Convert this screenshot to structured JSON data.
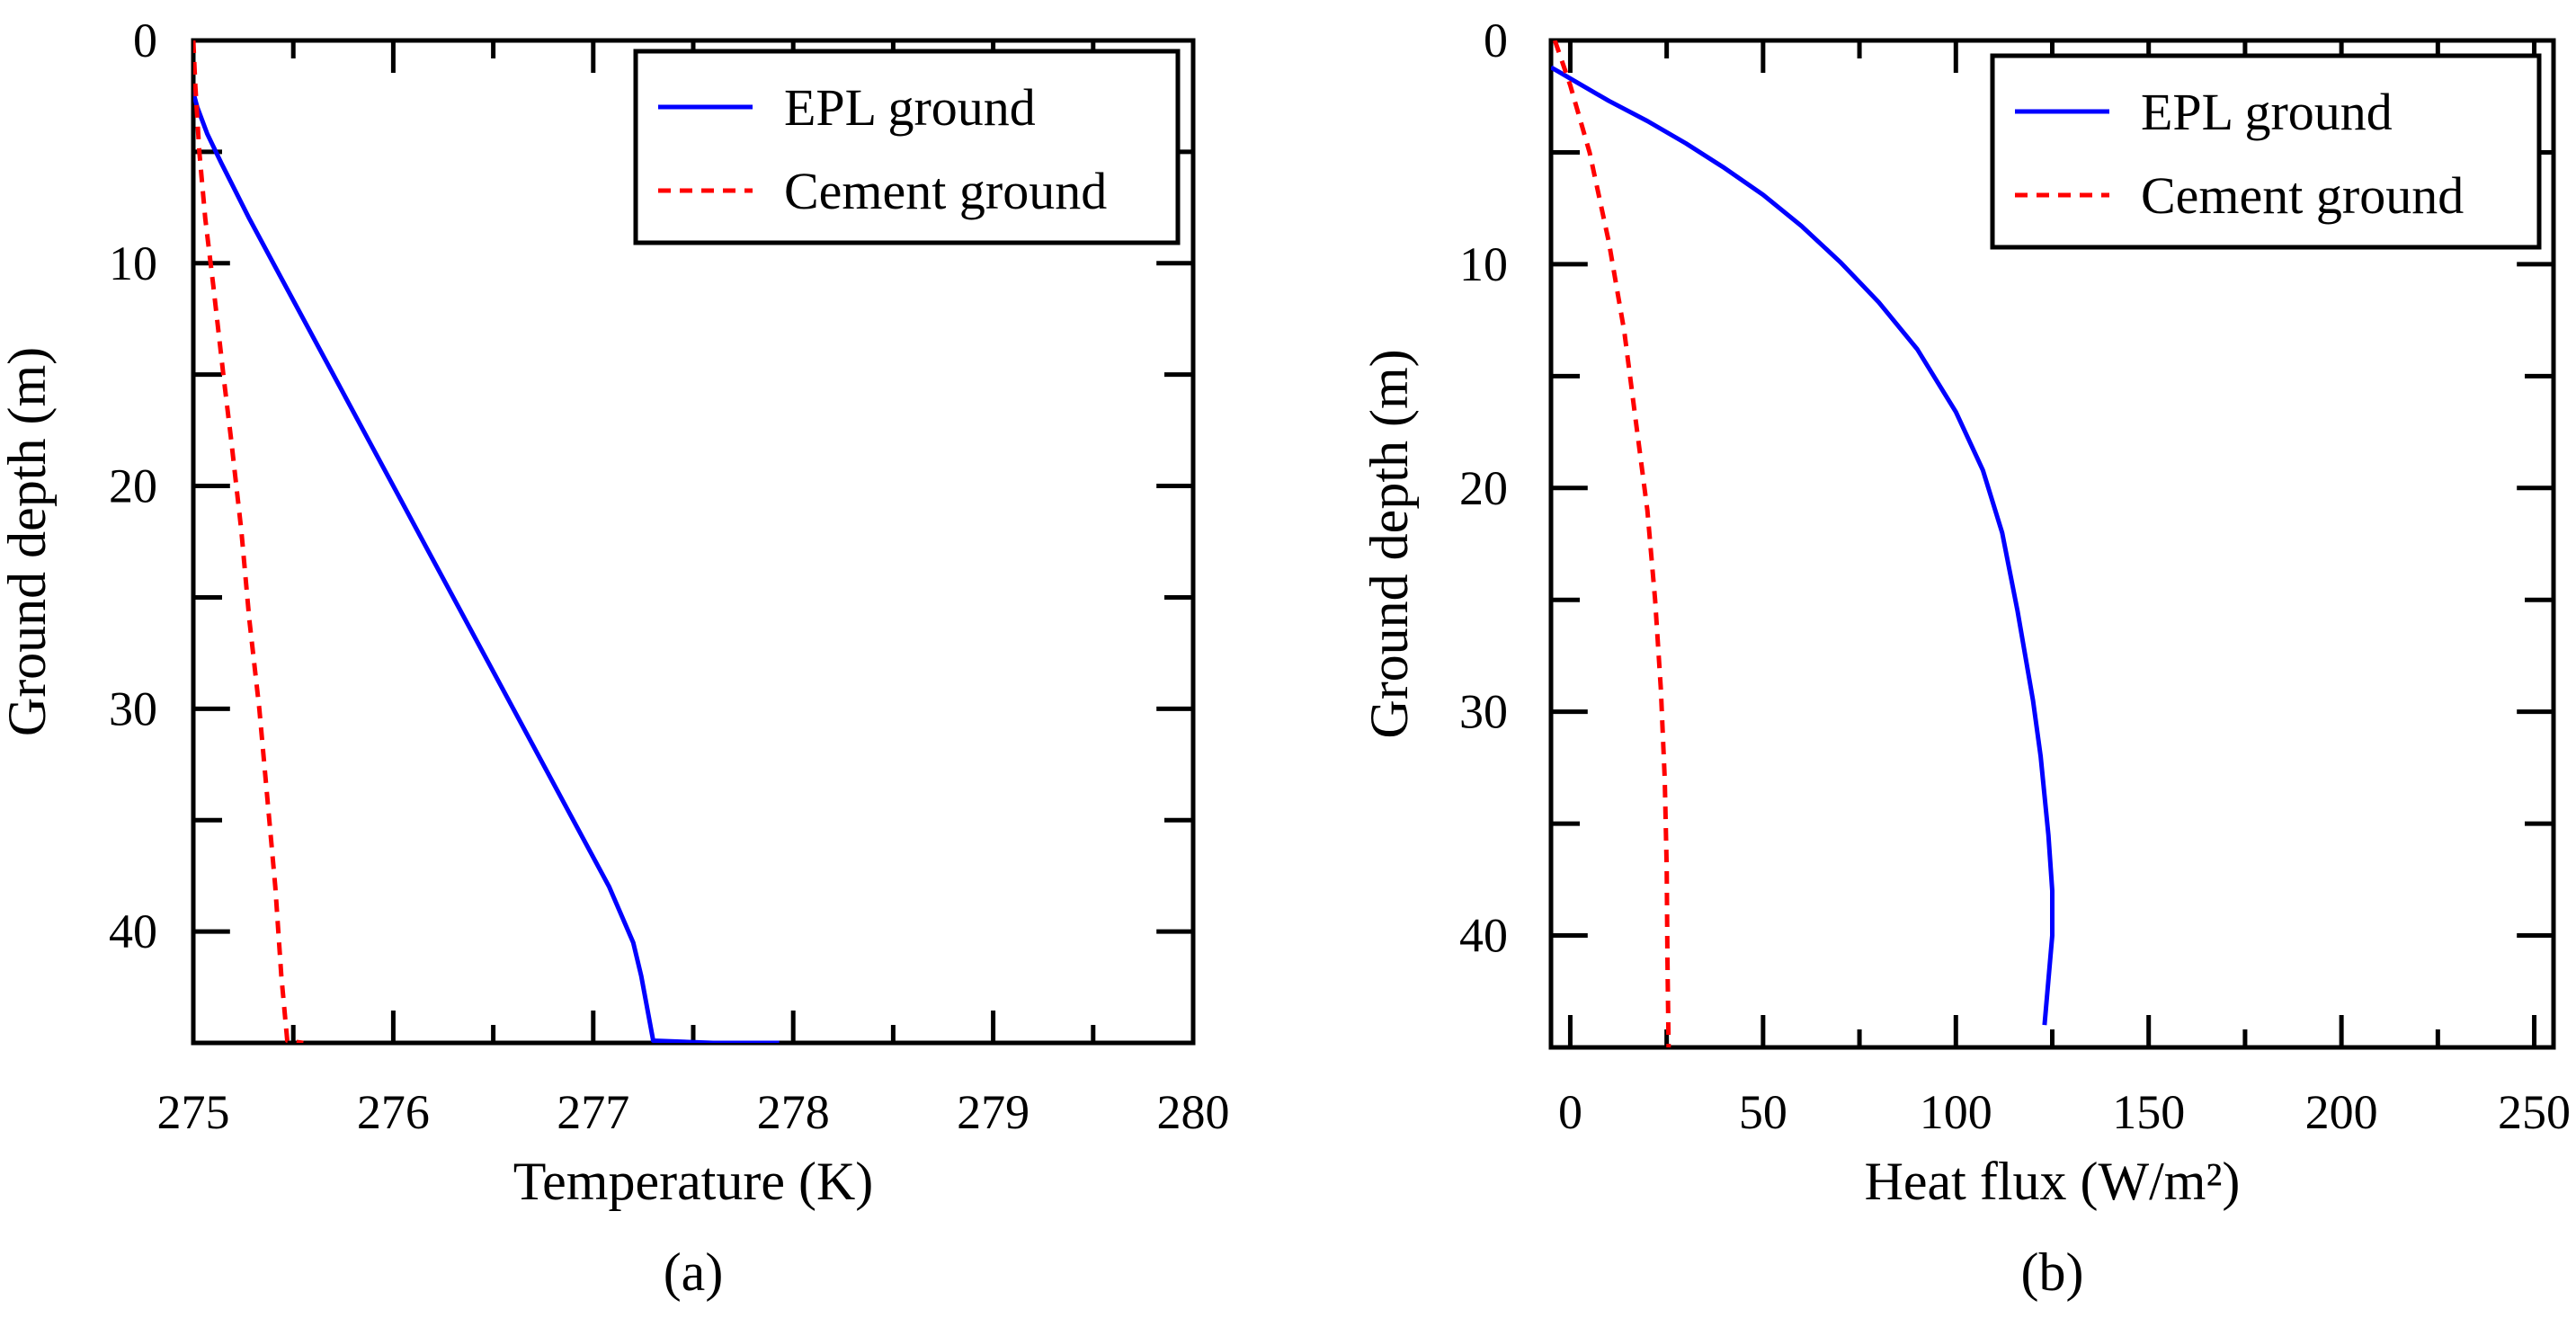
{
  "chart_data": [
    {
      "type": "line",
      "panel_label": "(a)",
      "xlabel": "Temperature (K)",
      "ylabel": "Ground depth (m)",
      "xlim": [
        275,
        280
      ],
      "ylim": [
        0,
        45
      ],
      "y_inverted": true,
      "xticks": [
        275,
        276,
        277,
        278,
        279,
        280
      ],
      "yticks": [
        0,
        10,
        20,
        30,
        40
      ],
      "grid": false,
      "legend_position": "top-right",
      "series": [
        {
          "name": "EPL ground",
          "color": "#0000ff",
          "style": "solid",
          "x": [
            275.0,
            274.98,
            274.97,
            274.99,
            275.02,
            275.07,
            275.14,
            275.28,
            275.43,
            275.58,
            275.73,
            275.88,
            276.03,
            276.18,
            276.33,
            276.48,
            276.63,
            276.78,
            276.93,
            277.08,
            277.2,
            277.24,
            277.3,
            277.6,
            277.93
          ],
          "y": [
            0,
            0.5,
            1.2,
            2.0,
            3.0,
            4.2,
            5.5,
            8.0,
            10.5,
            13.0,
            15.5,
            18.0,
            20.5,
            23.0,
            25.5,
            28.0,
            30.5,
            33.0,
            35.5,
            38.0,
            40.5,
            42.0,
            44.9,
            45.0,
            45.0
          ]
        },
        {
          "name": "Cement ground",
          "color": "#ff0000",
          "style": "dashed",
          "x": [
            275.0,
            275.01,
            275.03,
            275.06,
            275.1,
            275.15,
            275.19,
            275.24,
            275.28,
            275.33,
            275.37,
            275.41,
            275.44,
            275.47,
            275.55
          ],
          "y": [
            0,
            2,
            5,
            8,
            11,
            15,
            18,
            22,
            26,
            30,
            34,
            38,
            42,
            44.9,
            45.0
          ]
        }
      ]
    },
    {
      "type": "line",
      "panel_label": "(b)",
      "xlabel": "Heat flux (W/m²)",
      "ylabel": "Ground depth (m)",
      "xlim": [
        -5,
        255
      ],
      "ylim": [
        0,
        45
      ],
      "y_inverted": true,
      "xticks": [
        0,
        50,
        100,
        150,
        200,
        250
      ],
      "yticks": [
        0,
        10,
        20,
        30,
        40
      ],
      "grid": false,
      "legend_position": "top-right",
      "series": [
        {
          "name": "EPL ground",
          "color": "#0000ff",
          "style": "solid",
          "x": [
            -5,
            -3,
            0,
            10,
            20,
            30,
            40,
            50,
            60,
            70,
            80,
            90,
            100,
            107,
            112,
            116,
            120,
            122,
            124,
            125,
            125,
            124,
            123
          ],
          "y": [
            1.2,
            1.4,
            1.7,
            2.7,
            3.6,
            4.6,
            5.7,
            6.9,
            8.3,
            9.9,
            11.7,
            13.8,
            16.6,
            19.2,
            22.0,
            25.5,
            29.5,
            32.0,
            35.5,
            38.0,
            40.0,
            42.0,
            44.0
          ]
        },
        {
          "name": "Cement ground",
          "color": "#ff0000",
          "style": "dashed",
          "x": [
            -4,
            0,
            5,
            10,
            14,
            17,
            20,
            22,
            23.5,
            24.5,
            25,
            25.2,
            25.5
          ],
          "y": [
            0,
            2,
            5,
            9,
            13,
            17,
            21,
            25,
            29,
            33,
            37,
            41,
            45
          ]
        }
      ]
    }
  ]
}
